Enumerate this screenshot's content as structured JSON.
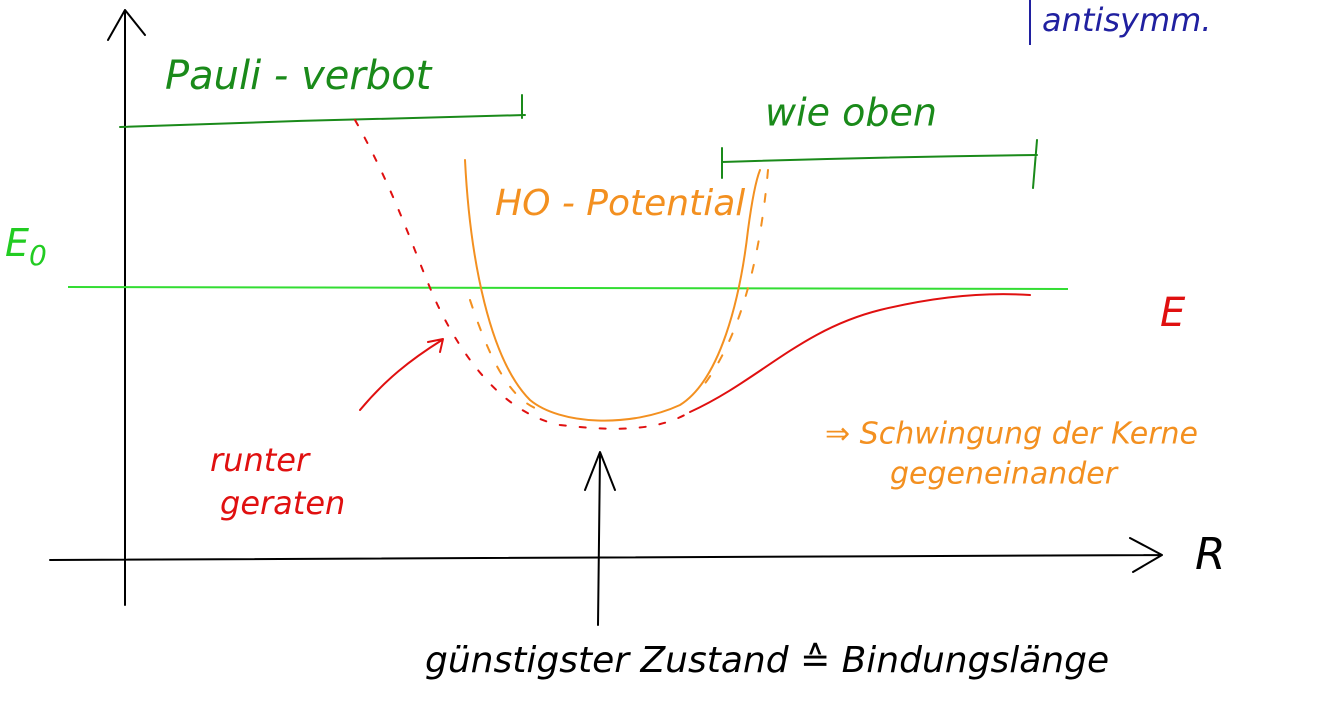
{
  "labels": {
    "top_note": "antisymm.",
    "pauli": "Pauli - verbot",
    "wie_oben": "wie oben",
    "ho": "HO - Potential",
    "e0": "E",
    "e0_sub": "0",
    "e": "E",
    "runter_1": "runter",
    "runter_2": "geraten",
    "schwingung_1": "⇒ Schwingung der Kerne",
    "schwingung_2": "gegeneinander",
    "bottom": "günstigster Zustand ≙ Bindungslänge",
    "axis_r": "R"
  }
}
